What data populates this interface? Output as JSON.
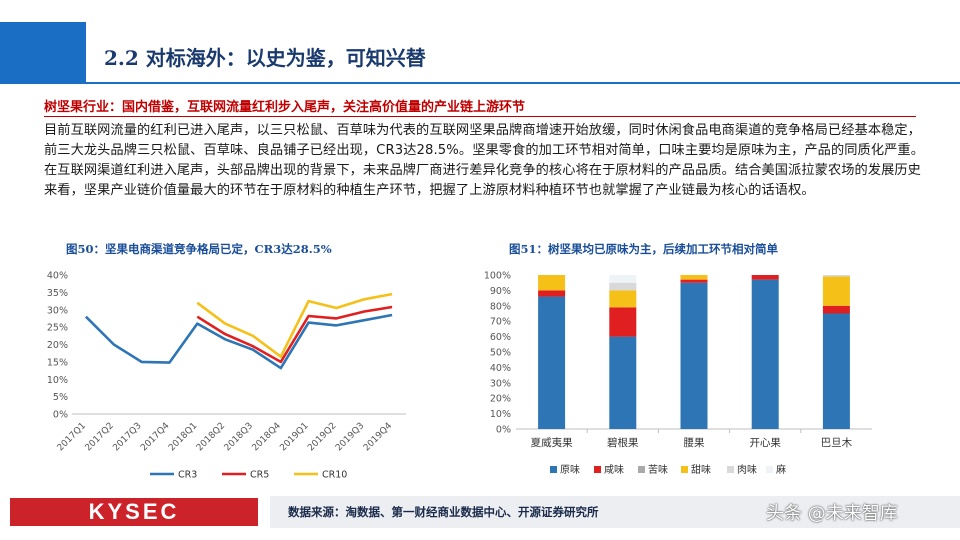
{
  "header": {
    "title": "2.2 对标海外：以史为鉴，可知兴替"
  },
  "subtitle": "树坚果行业：国内借鉴，互联网流量红利步入尾声，关注高价值量的产业链上游环节",
  "body_text": "目前互联网流量的红利已进入尾声，以三只松鼠、百草味为代表的互联网坚果品牌商增速开始放缓，同时休闲食品电商渠道的竞争格局已经基本稳定，前三大龙头品牌三只松鼠、百草味、良品铺子已经出现，CR3达28.5%。坚果零食的加工环节相对简单，口味主要均是原味为主，产品的同质化严重。在互联网渠道红利进入尾声，头部品牌出现的背景下，未来品牌厂商进行差异化竞争的核心将在于原材料的产品品质。结合美国派拉蒙农场的发展历史来看，坚果产业链价值量最大的环节在于原材料的种植生产环节，把握了上游原材料种植环节也就掌握了产业链最为核心的话语权。",
  "figure50": {
    "title": "图50：坚果电商渠道竞争格局已定，CR3达28.5%"
  },
  "figure51": {
    "title": "图51：树坚果均已原味为主，后续加工环节相对简单"
  },
  "chart_data": [
    {
      "type": "line",
      "categories": [
        "2017Q1",
        "2017Q2",
        "2017Q3",
        "2017Q4",
        "2018Q1",
        "2018Q2",
        "2018Q3",
        "2018Q4",
        "2019Q1",
        "2019Q2",
        "2019Q3",
        "2019Q4"
      ],
      "series": [
        {
          "name": "CR3",
          "color": "#2e75b6",
          "values": [
            28,
            20,
            15,
            14.8,
            26,
            21.5,
            18.5,
            13.2,
            26.3,
            25.5,
            27,
            28.5
          ]
        },
        {
          "name": "CR5",
          "color": "#e02020",
          "values": [
            null,
            null,
            null,
            null,
            28,
            23,
            19.5,
            15,
            28.2,
            27.5,
            29.5,
            30.8
          ]
        },
        {
          "name": "CR10",
          "color": "#f5c018",
          "values": [
            null,
            null,
            null,
            null,
            32,
            26,
            22.5,
            16.5,
            32.5,
            30.5,
            33,
            34.5
          ]
        }
      ],
      "yticks": [
        "0%",
        "5%",
        "10%",
        "15%",
        "20%",
        "25%",
        "30%",
        "35%",
        "40%"
      ],
      "ylim": [
        0,
        40
      ],
      "legend": "bottom",
      "grid": false
    },
    {
      "type": "bar",
      "stacked": true,
      "categories": [
        "夏威夷果",
        "碧根果",
        "腰果",
        "开心果",
        "巴旦木"
      ],
      "series": [
        {
          "name": "原味",
          "color": "#2e75b6",
          "values": [
            86,
            60,
            95,
            97,
            75
          ]
        },
        {
          "name": "咸味",
          "color": "#e02020",
          "values": [
            4,
            19,
            2,
            3,
            5
          ]
        },
        {
          "name": "苦味",
          "color": "#a9a9a9",
          "values": [
            0,
            0,
            0,
            0,
            0
          ]
        },
        {
          "name": "甜味",
          "color": "#f5c018",
          "values": [
            10,
            11,
            3,
            0,
            19
          ]
        },
        {
          "name": "肉味",
          "color": "#d9d9d9",
          "values": [
            0,
            5,
            0,
            0,
            1
          ]
        },
        {
          "name": "麻",
          "color": "#eef3f8",
          "values": [
            0,
            5,
            0,
            0,
            0
          ]
        }
      ],
      "yticks": [
        "0%",
        "10%",
        "20%",
        "30%",
        "40%",
        "50%",
        "60%",
        "70%",
        "80%",
        "90%",
        "100%"
      ],
      "ylim": [
        0,
        100
      ],
      "legend": "bottom",
      "grid": false
    }
  ],
  "footer": {
    "logo": "KYSEC",
    "source": "数据来源：淘数据、第一财经商业数据中心、开源证券研究所",
    "watermark": "头条 @未来智库"
  }
}
